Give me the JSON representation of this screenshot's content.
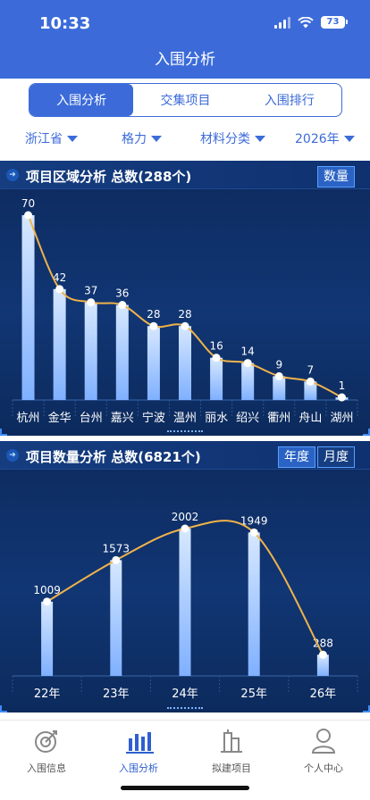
{
  "status": {
    "time": "10:33",
    "battery": "73"
  },
  "header": {
    "title": "入围分析"
  },
  "tabs": [
    {
      "label": "入围分析",
      "active": true
    },
    {
      "label": "交集项目",
      "active": false
    },
    {
      "label": "入围排行",
      "active": false
    }
  ],
  "filters": [
    "浙江省",
    "格力",
    "材料分类",
    "2026年"
  ],
  "region_panel": {
    "title": "项目区域分析 总数(288个)",
    "button": "数量"
  },
  "quantity_panel": {
    "title": "项目数量分析 总数(6821个)",
    "buttons": [
      "年度",
      "月度"
    ]
  },
  "chart_data": [
    {
      "type": "bar",
      "categories": [
        "杭州",
        "金华",
        "台州",
        "嘉兴",
        "宁波",
        "温州",
        "丽水",
        "绍兴",
        "衢州",
        "舟山",
        "湖州"
      ],
      "values": [
        70,
        42,
        37,
        36,
        28,
        28,
        16,
        14,
        9,
        7,
        1
      ],
      "overlay": "line",
      "ylim": [
        0,
        70
      ],
      "colors": {
        "bar": "#7fb0ff",
        "line": "#f0b34a"
      }
    },
    {
      "type": "bar",
      "categories": [
        "22年",
        "23年",
        "24年",
        "25年",
        "26年"
      ],
      "values": [
        1009,
        1573,
        2002,
        1949,
        288
      ],
      "overlay": "line",
      "ylim": [
        0,
        2002
      ],
      "colors": {
        "bar": "#7fb0ff",
        "line": "#f0b34a"
      }
    }
  ],
  "tabbar": [
    {
      "label": "入围信息",
      "icon": "target-icon",
      "active": false
    },
    {
      "label": "入围分析",
      "icon": "bar-chart-icon",
      "active": true
    },
    {
      "label": "拟建项目",
      "icon": "building-icon",
      "active": false
    },
    {
      "label": "个人中心",
      "icon": "person-icon",
      "active": false
    }
  ]
}
